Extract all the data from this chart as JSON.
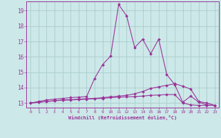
{
  "xlabel": "Windchill (Refroidissement éolien,°C)",
  "background_color": "#cce8e8",
  "grid_color": "#aacccc",
  "line_color": "#993399",
  "xlim": [
    -0.5,
    23.5
  ],
  "ylim": [
    12.7,
    19.6
  ],
  "xticks": [
    0,
    1,
    2,
    3,
    4,
    5,
    6,
    7,
    8,
    9,
    10,
    11,
    12,
    13,
    14,
    15,
    16,
    17,
    18,
    19,
    20,
    21,
    22,
    23
  ],
  "yticks": [
    13,
    14,
    15,
    16,
    17,
    18,
    19
  ],
  "line1_x": [
    0,
    1,
    2,
    3,
    4,
    5,
    6,
    7,
    8,
    9,
    10,
    11,
    12,
    13,
    14,
    15,
    16,
    17,
    18,
    19,
    20,
    21,
    22,
    23
  ],
  "line1_y": [
    13.0,
    13.1,
    13.2,
    13.25,
    13.3,
    13.35,
    13.38,
    13.42,
    14.6,
    15.5,
    16.05,
    19.4,
    18.65,
    16.6,
    17.15,
    16.2,
    17.15,
    14.85,
    14.2,
    13.05,
    13.45,
    13.05,
    12.88,
    12.85
  ],
  "line2_x": [
    0,
    1,
    2,
    3,
    4,
    5,
    6,
    7,
    8,
    9,
    10,
    11,
    12,
    13,
    14,
    15,
    16,
    17,
    18,
    19,
    20,
    21,
    22,
    23
  ],
  "line2_y": [
    13.0,
    13.05,
    13.1,
    13.15,
    13.2,
    13.22,
    13.25,
    13.28,
    13.3,
    13.35,
    13.4,
    13.45,
    13.5,
    13.6,
    13.75,
    13.95,
    14.05,
    14.15,
    14.25,
    14.1,
    13.9,
    13.1,
    13.0,
    12.85
  ],
  "line3_x": [
    0,
    1,
    2,
    3,
    4,
    5,
    6,
    7,
    8,
    9,
    10,
    11,
    12,
    13,
    14,
    15,
    16,
    17,
    18,
    19,
    20,
    21,
    22,
    23
  ],
  "line3_y": [
    13.0,
    13.05,
    13.1,
    13.15,
    13.18,
    13.2,
    13.22,
    13.25,
    13.28,
    13.3,
    13.35,
    13.38,
    13.4,
    13.42,
    13.45,
    13.5,
    13.52,
    13.55,
    13.55,
    13.0,
    12.88,
    12.85,
    12.85,
    12.85
  ]
}
